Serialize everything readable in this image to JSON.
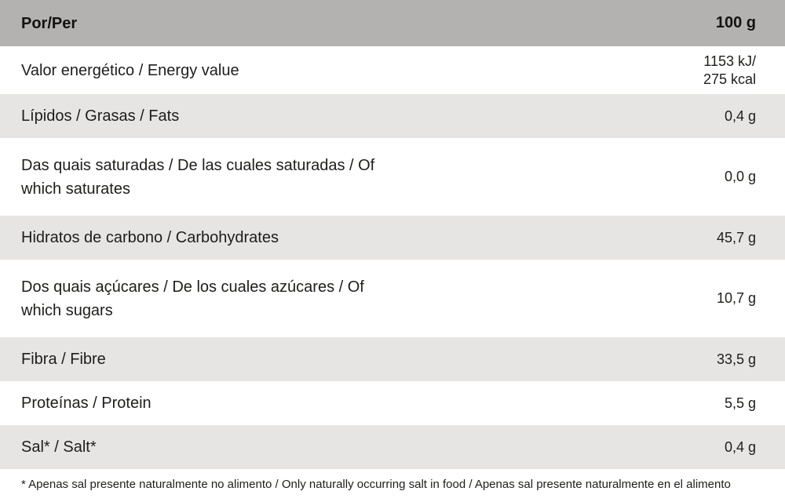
{
  "colors": {
    "header_bg": "#b3b2b1",
    "shaded_row_bg": "#e6e5e4",
    "text_color": "#1d1d1b"
  },
  "table": {
    "header": {
      "label": "Por/Per",
      "value": "100 g"
    },
    "rows": [
      {
        "label": "Valor energético / Energy value",
        "value": "1153 kJ/\n275 kcal"
      },
      {
        "label": "Lípidos / Grasas / Fats",
        "value": "0,4 g"
      },
      {
        "label": "Das quais saturadas / De las cuales saturadas / Of which saturates",
        "value": "0,0 g"
      },
      {
        "label": "Hidratos de carbono / Carbohydrates",
        "value": "45,7 g"
      },
      {
        "label": "Dos quais açúcares / De los cuales azúcares / Of which sugars",
        "value": "10,7 g"
      },
      {
        "label": "Fibra / Fibre",
        "value": "33,5 g"
      },
      {
        "label": "Proteínas / Protein",
        "value": "5,5 g"
      },
      {
        "label": "Sal* / Salt*",
        "value": "0,4 g"
      }
    ],
    "footnote": "* Apenas sal presente naturalmente no alimento / Only naturally occurring salt in food / Apenas sal presente naturalmente en el alimento"
  }
}
